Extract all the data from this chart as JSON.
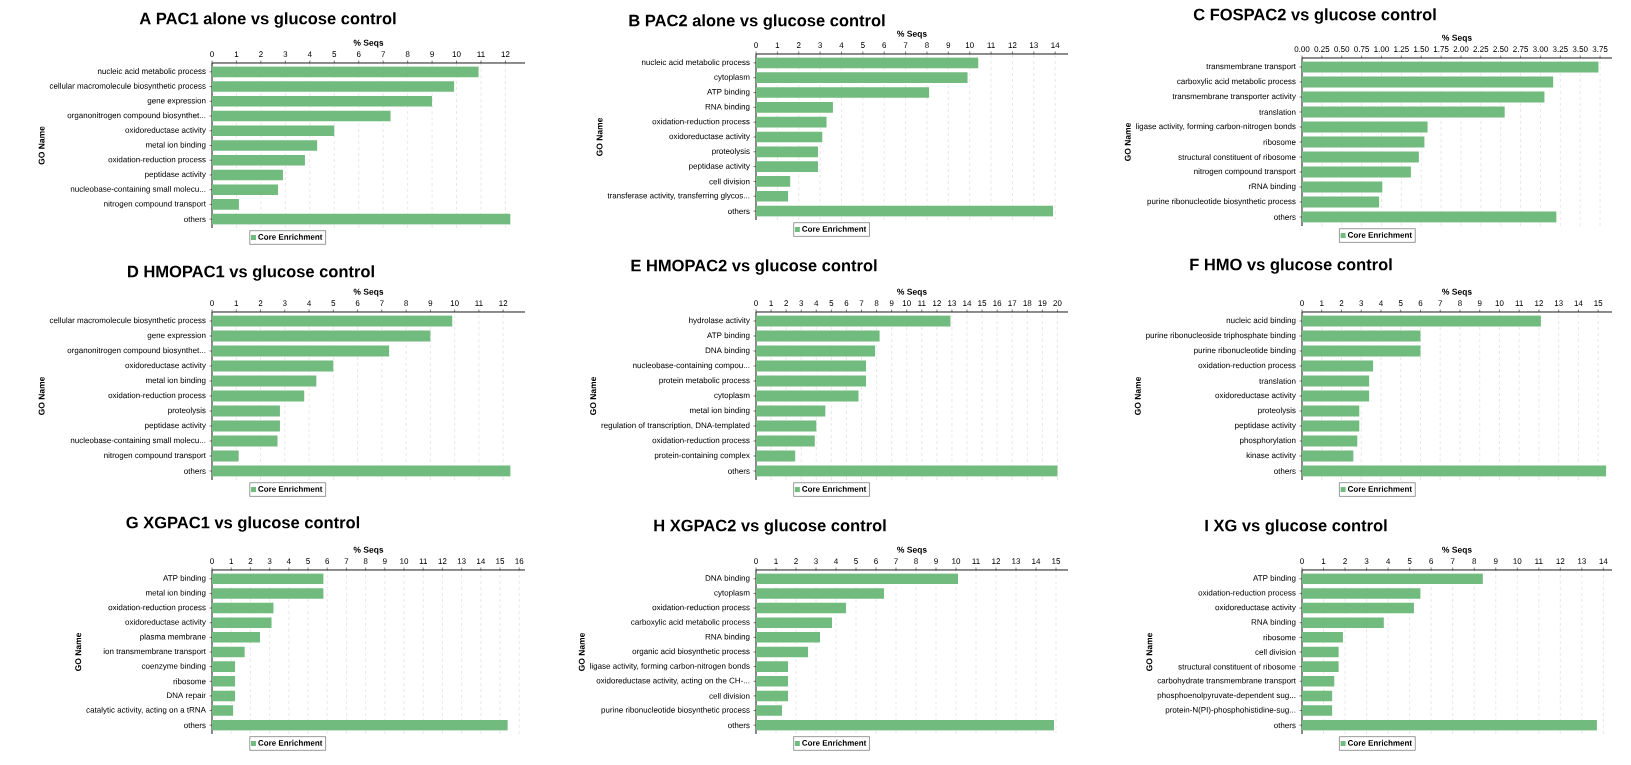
{
  "chart_data": [
    {
      "type": "bar",
      "orientation": "horizontal",
      "title": "A PAC1 alone vs glucose control",
      "xlabel": "% Seqs",
      "ylabel": "GO Name",
      "categories": [
        "nucleic acid metabolic process",
        "cellular macromolecule biosynthetic process",
        "gene expression",
        "organonitrogen compound biosynthet...",
        "oxidoreductase activity",
        "metal ion binding",
        "oxidation-reduction process",
        "peptidase activity",
        "nucleobase-containing small molecu...",
        "nitrogen compound transport",
        "others"
      ],
      "series": [
        {
          "name": "Core Enrichment",
          "color": "#72bb7e",
          "values": [
            10.9,
            9.9,
            9.0,
            7.3,
            5.0,
            4.3,
            3.8,
            2.9,
            2.7,
            1.1,
            12.2
          ]
        }
      ],
      "xlim": [
        0,
        12.8
      ],
      "xticks": [
        0,
        1,
        2,
        3,
        4,
        5,
        6,
        7,
        8,
        9,
        10,
        11,
        12
      ],
      "grid": "x",
      "legend": "bottom"
    },
    {
      "type": "bar",
      "orientation": "horizontal",
      "title": "B PAC2 alone vs glucose control",
      "xlabel": "% Seqs",
      "ylabel": "GO Name",
      "categories": [
        "nucleic acid metabolic process",
        "cytoplasm",
        "ATP binding",
        "RNA binding",
        "oxidation-reduction process",
        "oxidoreductase activity",
        "proteolysis",
        "peptidase activity",
        "cell division",
        "transferase activity, transferring glycos...",
        "others"
      ],
      "series": [
        {
          "name": "Core Enrichment",
          "color": "#72bb7e",
          "values": [
            10.4,
            9.9,
            8.1,
            3.6,
            3.3,
            3.1,
            2.9,
            2.9,
            1.6,
            1.5,
            13.9
          ]
        }
      ],
      "xlim": [
        0,
        14.6
      ],
      "xticks": [
        0,
        1,
        2,
        3,
        4,
        5,
        6,
        7,
        8,
        9,
        10,
        11,
        12,
        13,
        14
      ],
      "grid": "x",
      "legend": "bottom"
    },
    {
      "type": "bar",
      "orientation": "horizontal",
      "title": "C FOSPAC2 vs glucose control",
      "xlabel": "% Seqs",
      "ylabel": "GO Name",
      "categories": [
        "transmembrane transport",
        "carboxylic acid metabolic process",
        "transmembrane transporter activity",
        "translation",
        "ligase activity, forming carbon-nitrogen bonds",
        "ribosome",
        "structural constituent of ribosome",
        "nitrogen compound transport",
        "rRNA binding",
        "purine ribonucleotide biosynthetic process",
        "others"
      ],
      "series": [
        {
          "name": "Core Enrichment",
          "color": "#72bb7e",
          "values": [
            3.73,
            3.16,
            3.05,
            2.55,
            1.58,
            1.54,
            1.47,
            1.37,
            1.01,
            0.97,
            3.2
          ]
        }
      ],
      "xlim": [
        0,
        3.9
      ],
      "xticks": [
        {
          "value": 0,
          "label": "0.00"
        },
        {
          "value": 0.25,
          "label": "0.25"
        },
        {
          "value": 0.5,
          "label": "0.50"
        },
        {
          "value": 0.75,
          "label": "0.75"
        },
        {
          "value": 1,
          "label": "1.00"
        },
        {
          "value": 1.25,
          "label": "1.25"
        },
        {
          "value": 1.5,
          "label": "1.50"
        },
        {
          "value": 1.75,
          "label": "1.75"
        },
        {
          "value": 2,
          "label": "2.00"
        },
        {
          "value": 2.25,
          "label": "2.25"
        },
        {
          "value": 2.5,
          "label": "2.50"
        },
        {
          "value": 2.75,
          "label": "2.75"
        },
        {
          "value": 3,
          "label": "3.00"
        },
        {
          "value": 3.25,
          "label": "3.25"
        },
        {
          "value": 3.5,
          "label": "3.50"
        },
        {
          "value": 3.75,
          "label": "3.75"
        }
      ],
      "grid": "x",
      "legend": "bottom"
    },
    {
      "type": "bar",
      "orientation": "horizontal",
      "title": "D HMOPAC1 vs glucose control",
      "xlabel": "% Seqs",
      "ylabel": "GO Name",
      "categories": [
        "cellular macromolecule biosynthetic process",
        "gene expression",
        "organonitrogen compound biosynthet...",
        "oxidoreductase activity",
        "metal ion binding",
        "oxidation-reduction process",
        "proteolysis",
        "peptidase activity",
        "nucleobase-containing small molecu...",
        "nitrogen compound transport",
        "others"
      ],
      "series": [
        {
          "name": "Core Enrichment",
          "color": "#72bb7e",
          "values": [
            9.9,
            9.0,
            7.3,
            5.0,
            4.3,
            3.8,
            2.8,
            2.8,
            2.7,
            1.1,
            12.3
          ]
        }
      ],
      "xlim": [
        0,
        12.9
      ],
      "xticks": [
        0,
        1,
        2,
        3,
        4,
        5,
        6,
        7,
        8,
        9,
        10,
        11,
        12
      ],
      "grid": "x",
      "legend": "bottom"
    },
    {
      "type": "bar",
      "orientation": "horizontal",
      "title": "E HMOPAC2  vs glucose control",
      "xlabel": "% Seqs",
      "ylabel": "GO Name",
      "categories": [
        "hydrolase activity",
        "ATP binding",
        "DNA binding",
        "nucleobase-containing compou...",
        "protein metabolic process",
        "cytoplasm",
        "metal ion binding",
        "regulation of transcription, DNA-templated",
        "oxidation-reduction process",
        "protein-containing complex",
        "others"
      ],
      "series": [
        {
          "name": "Core Enrichment",
          "color": "#72bb7e",
          "values": [
            12.9,
            8.2,
            7.9,
            7.3,
            7.3,
            6.8,
            4.6,
            4.0,
            3.9,
            2.6,
            20.0
          ]
        }
      ],
      "xlim": [
        0,
        20.7
      ],
      "xticks": [
        0,
        1,
        2,
        3,
        4,
        5,
        6,
        7,
        8,
        9,
        10,
        11,
        12,
        13,
        14,
        15,
        16,
        17,
        18,
        19,
        20
      ],
      "grid": "x",
      "legend": "bottom"
    },
    {
      "type": "bar",
      "orientation": "horizontal",
      "title": "F HMO vs glucose control",
      "xlabel": "% Seqs",
      "ylabel": "GO Name",
      "categories": [
        "nucleic acid binding",
        "purine ribonucleoside triphosphate binding",
        "purine ribonucleotide binding",
        "oxidation-reduction process",
        "translation",
        "oxidoreductase activity",
        "proteolysis",
        "peptidase activity",
        "phosphorylation",
        "kinase activity",
        "others"
      ],
      "series": [
        {
          "name": "Core Enrichment",
          "color": "#72bb7e",
          "values": [
            12.1,
            6.0,
            6.0,
            3.6,
            3.4,
            3.4,
            2.9,
            2.9,
            2.8,
            2.6,
            15.4
          ]
        }
      ],
      "xlim": [
        0,
        15.7
      ],
      "xticks": [
        0,
        1,
        2,
        3,
        4,
        5,
        6,
        7,
        8,
        9,
        10,
        11,
        12,
        13,
        14,
        15
      ],
      "grid": "x",
      "legend": "bottom"
    },
    {
      "type": "bar",
      "orientation": "horizontal",
      "title": "G XGPAC1 vs glucose control",
      "xlabel": "% Seqs",
      "ylabel": "GO Name",
      "categories": [
        "ATP binding",
        "metal ion binding",
        "oxidation-reduction process",
        "oxidoreductase activity",
        "plasma membrane",
        "ion transmembrane transport",
        "coenzyme binding",
        "ribosome",
        "DNA repair",
        "catalytic activity, acting on a tRNA",
        "others"
      ],
      "series": [
        {
          "name": "Core Enrichment",
          "color": "#72bb7e",
          "values": [
            5.8,
            5.8,
            3.2,
            3.1,
            2.5,
            1.7,
            1.2,
            1.2,
            1.2,
            1.1,
            15.4
          ]
        }
      ],
      "xlim": [
        0,
        16.3
      ],
      "xticks": [
        0,
        1,
        2,
        3,
        4,
        5,
        6,
        7,
        8,
        9,
        10,
        11,
        12,
        13,
        14,
        15,
        16
      ],
      "grid": "x",
      "legend": "bottom"
    },
    {
      "type": "bar",
      "orientation": "horizontal",
      "title": "H XGPAC2 vs glucose control",
      "xlabel": "% Seqs",
      "ylabel": "GO Name",
      "categories": [
        "DNA binding",
        "cytoplasm",
        "oxidation-reduction process",
        "carboxylic acid metabolic process",
        "RNA binding",
        "organic acid biosynthetic process",
        "ligase activity, forming carbon-nitrogen bonds",
        "oxidoreductase activity, acting on the CH-...",
        "cell division",
        "purine ribonucleotide biosynthetic process",
        "others"
      ],
      "series": [
        {
          "name": "Core Enrichment",
          "color": "#72bb7e",
          "values": [
            10.1,
            6.4,
            4.5,
            3.8,
            3.2,
            2.6,
            1.6,
            1.6,
            1.6,
            1.3,
            14.9
          ]
        }
      ],
      "xlim": [
        0,
        15.6
      ],
      "xticks": [
        0,
        1,
        2,
        3,
        4,
        5,
        6,
        7,
        8,
        9,
        10,
        11,
        12,
        13,
        14,
        15
      ],
      "grid": "x",
      "legend": "bottom"
    },
    {
      "type": "bar",
      "orientation": "horizontal",
      "title": "I XG vs glucose control",
      "xlabel": "% Seqs",
      "ylabel": "GO Name",
      "categories": [
        "ATP binding",
        "oxidation-reduction process",
        "oxidoreductase activity",
        "RNA binding",
        "ribosome",
        "cell division",
        "structural constituent of ribosome",
        "carbohydrate transmembrane transport",
        "phosphoenolpyruvate-dependent sug...",
        "protein-N(PI)-phosphohistidine-sug...",
        "others"
      ],
      "series": [
        {
          "name": "Core Enrichment",
          "color": "#72bb7e",
          "values": [
            8.4,
            5.5,
            5.2,
            3.8,
            1.9,
            1.7,
            1.7,
            1.5,
            1.4,
            1.4,
            13.7
          ]
        }
      ],
      "xlim": [
        0,
        14.4
      ],
      "xticks": [
        0,
        1,
        2,
        3,
        4,
        5,
        6,
        7,
        8,
        9,
        10,
        11,
        12,
        13,
        14
      ],
      "grid": "x",
      "legend": "bottom"
    }
  ]
}
